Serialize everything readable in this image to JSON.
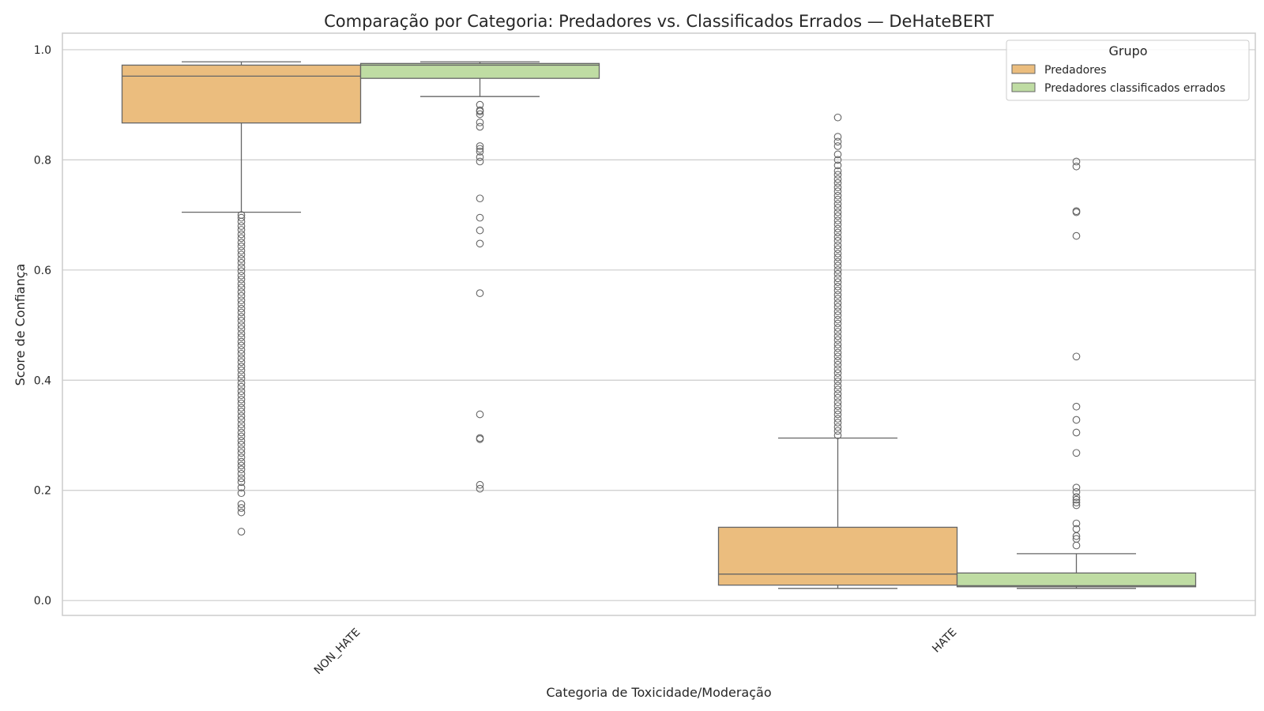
{
  "chart_data": {
    "type": "box",
    "title": "Comparação por Categoria: Predadores vs. Classificados Errados — DeHateBERT",
    "xlabel": "Categoria de Toxicidade/Moderação",
    "ylabel": "Score de Confiança",
    "ylim": [
      -0.027,
      1.03
    ],
    "y_ticks": [
      "0.0",
      "0.2",
      "0.4",
      "0.6",
      "0.8",
      "1.0"
    ],
    "categories": [
      "NON_HATE",
      "HATE"
    ],
    "grid": "horizontal",
    "legend": {
      "title": "Grupo",
      "placement": "top-right",
      "entries": [
        "Predadores",
        "Predadores classificados errados"
      ]
    },
    "colors": {
      "Predadores": "#ebbd7e",
      "Predadores classificados errados": "#bfdca3",
      "box_edge": "#666666",
      "grid": "#cccccc"
    },
    "series": [
      {
        "name": "Predadores",
        "boxes": [
          {
            "category": "NON_HATE",
            "whisker_low": 0.705,
            "q1": 0.867,
            "median": 0.952,
            "q3": 0.972,
            "whisker_high": 0.978,
            "outliers": [
              0.125,
              0.16,
              0.168,
              0.175,
              0.195,
              0.205,
              0.215,
              0.222,
              0.23,
              0.238,
              0.245,
              0.252,
              0.26,
              0.268,
              0.275,
              0.283,
              0.29,
              0.298,
              0.305,
              0.313,
              0.32,
              0.328,
              0.335,
              0.343,
              0.35,
              0.358,
              0.365,
              0.373,
              0.38,
              0.388,
              0.395,
              0.403,
              0.41,
              0.418,
              0.425,
              0.433,
              0.44,
              0.448,
              0.455,
              0.463,
              0.47,
              0.478,
              0.485,
              0.493,
              0.5,
              0.508,
              0.515,
              0.523,
              0.53,
              0.538,
              0.545,
              0.553,
              0.56,
              0.568,
              0.575,
              0.583,
              0.59,
              0.598,
              0.605,
              0.613,
              0.62,
              0.628,
              0.635,
              0.643,
              0.65,
              0.658,
              0.665,
              0.673,
              0.68,
              0.688,
              0.695,
              0.7
            ]
          },
          {
            "category": "HATE",
            "whisker_low": 0.022,
            "q1": 0.028,
            "median": 0.048,
            "q3": 0.133,
            "whisker_high": 0.295,
            "outliers": [
              0.3,
              0.308,
              0.315,
              0.323,
              0.33,
              0.338,
              0.345,
              0.353,
              0.36,
              0.368,
              0.375,
              0.383,
              0.39,
              0.398,
              0.405,
              0.413,
              0.42,
              0.428,
              0.435,
              0.443,
              0.45,
              0.458,
              0.465,
              0.473,
              0.48,
              0.488,
              0.495,
              0.503,
              0.51,
              0.518,
              0.525,
              0.533,
              0.54,
              0.548,
              0.555,
              0.563,
              0.57,
              0.578,
              0.585,
              0.593,
              0.6,
              0.608,
              0.615,
              0.623,
              0.63,
              0.638,
              0.645,
              0.653,
              0.66,
              0.668,
              0.675,
              0.683,
              0.69,
              0.698,
              0.705,
              0.713,
              0.72,
              0.728,
              0.735,
              0.743,
              0.75,
              0.758,
              0.765,
              0.773,
              0.78,
              0.79,
              0.8,
              0.81,
              0.825,
              0.833,
              0.842,
              0.877
            ]
          }
        ]
      },
      {
        "name": "Predadores classificados errados",
        "boxes": [
          {
            "category": "NON_HATE",
            "whisker_low": 0.915,
            "q1": 0.948,
            "median": 0.972,
            "q3": 0.975,
            "whisker_high": 0.978,
            "outliers": [
              0.203,
              0.21,
              0.293,
              0.295,
              0.338,
              0.558,
              0.648,
              0.672,
              0.695,
              0.73,
              0.797,
              0.805,
              0.815,
              0.82,
              0.825,
              0.86,
              0.868,
              0.883,
              0.888,
              0.89,
              0.9
            ]
          },
          {
            "category": "HATE",
            "whisker_low": 0.022,
            "q1": 0.025,
            "median": 0.027,
            "q3": 0.05,
            "whisker_high": 0.085,
            "outliers": [
              0.1,
              0.112,
              0.117,
              0.13,
              0.14,
              0.173,
              0.178,
              0.183,
              0.188,
              0.197,
              0.205,
              0.268,
              0.305,
              0.328,
              0.352,
              0.443,
              0.662,
              0.705,
              0.707,
              0.788,
              0.797
            ]
          }
        ]
      }
    ]
  }
}
